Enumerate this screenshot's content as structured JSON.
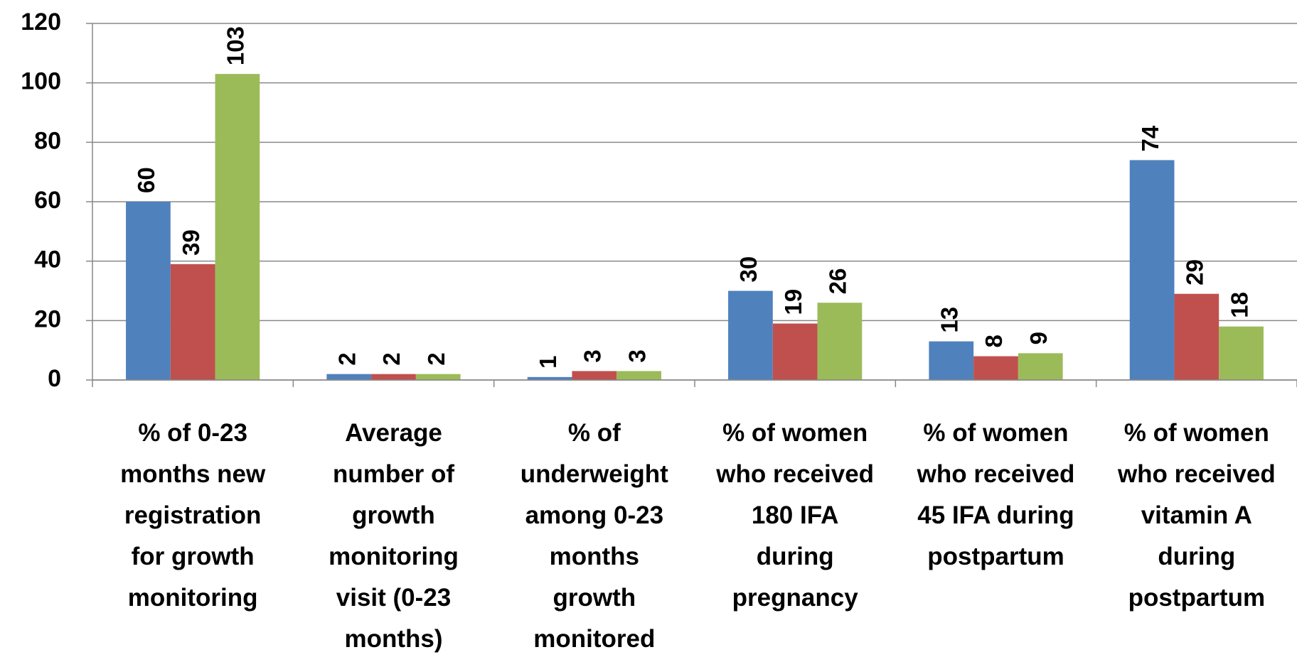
{
  "chart_data": {
    "type": "bar",
    "categories": [
      "% of 0-23\nmonths new\nregistration\nfor growth\nmonitoring",
      "Average\nnumber of\ngrowth\nmonitoring\nvisit (0-23\nmonths)",
      "% of\nunderweight\namong 0-23\nmonths\ngrowth\nmonitored",
      "% of women\nwho received\n180 IFA\nduring\npregnancy",
      "% of women\nwho received\n45 IFA during\npostpartum",
      "% of women\nwho received\nvitamin A\nduring\npostpartum"
    ],
    "series": [
      {
        "color": "#4f81bd",
        "values": [
          60,
          2,
          1,
          30,
          13,
          74
        ]
      },
      {
        "color": "#c0504d",
        "values": [
          39,
          2,
          3,
          19,
          8,
          29
        ]
      },
      {
        "color": "#9bbb59",
        "values": [
          103,
          2,
          3,
          26,
          9,
          18
        ]
      }
    ],
    "ylim": [
      0,
      120
    ],
    "yticks": [
      0,
      20,
      40,
      60,
      80,
      100,
      120
    ],
    "grid": true
  }
}
